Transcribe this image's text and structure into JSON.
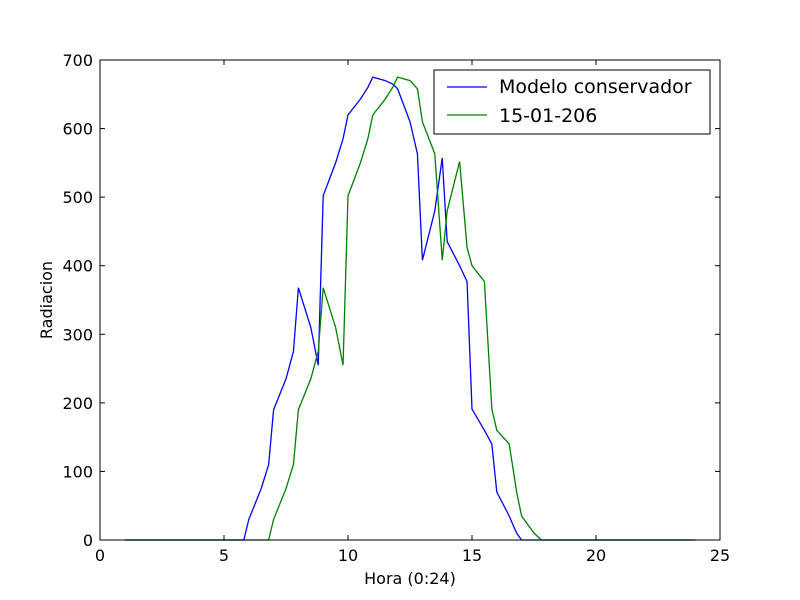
{
  "chart_data": {
    "type": "line",
    "xlabel": "Hora (0:24)",
    "ylabel": "Radiacion",
    "xlim": [
      0,
      25
    ],
    "ylim": [
      0,
      700
    ],
    "xticks": [
      0,
      5,
      10,
      15,
      20,
      25
    ],
    "yticks": [
      0,
      100,
      200,
      300,
      400,
      500,
      600,
      700
    ],
    "xtick_labels": [
      "0",
      "5",
      "10",
      "15",
      "20",
      "25"
    ],
    "ytick_labels": [
      "0",
      "100",
      "200",
      "300",
      "400",
      "500",
      "600",
      "700"
    ],
    "grid": false,
    "legend_position": "top-right",
    "series": [
      {
        "name": "Modelo conservador",
        "color": "#0000ff",
        "x": [
          1,
          2,
          3,
          4,
          5,
          5.8,
          6,
          6.5,
          6.8,
          7,
          7.5,
          7.8,
          8,
          8.5,
          8.8,
          9,
          9.5,
          9.8,
          10,
          10.5,
          10.8,
          11,
          11.5,
          11.8,
          12,
          12.5,
          12.8,
          13,
          13.5,
          13.8,
          14,
          14.5,
          14.8,
          15,
          15.5,
          15.8,
          16,
          16.5,
          16.8,
          17,
          18,
          19,
          20,
          21,
          22,
          23,
          24
        ],
        "y": [
          0,
          0,
          0,
          0,
          0,
          0,
          30,
          75,
          110,
          190,
          235,
          275,
          368,
          310,
          255,
          502,
          550,
          585,
          620,
          643,
          660,
          675,
          670,
          665,
          658,
          610,
          563,
          408,
          480,
          557,
          435,
          400,
          377,
          191,
          160,
          140,
          70,
          35,
          10,
          0,
          0,
          0,
          0,
          0,
          0,
          0,
          0
        ]
      },
      {
        "name": "15-01-206",
        "color": "#008000",
        "x": [
          1,
          2,
          3,
          4,
          5,
          6,
          6.8,
          7,
          7.5,
          7.8,
          8,
          8.5,
          8.8,
          9,
          9.5,
          9.8,
          10,
          10.5,
          10.8,
          11,
          11.5,
          11.8,
          12,
          12.5,
          12.8,
          13,
          13.5,
          13.8,
          14,
          14.5,
          14.8,
          15,
          15.5,
          15.8,
          16,
          16.5,
          16.8,
          17,
          17.5,
          17.8,
          18,
          19,
          20,
          21,
          22,
          23,
          24
        ],
        "y": [
          0,
          0,
          0,
          0,
          0,
          0,
          0,
          30,
          75,
          110,
          190,
          235,
          275,
          368,
          310,
          255,
          502,
          550,
          585,
          620,
          643,
          660,
          675,
          670,
          658,
          610,
          563,
          408,
          480,
          552,
          427,
          400,
          377,
          191,
          160,
          140,
          70,
          35,
          10,
          0,
          0,
          0,
          0,
          0,
          0,
          0,
          0
        ]
      }
    ]
  }
}
